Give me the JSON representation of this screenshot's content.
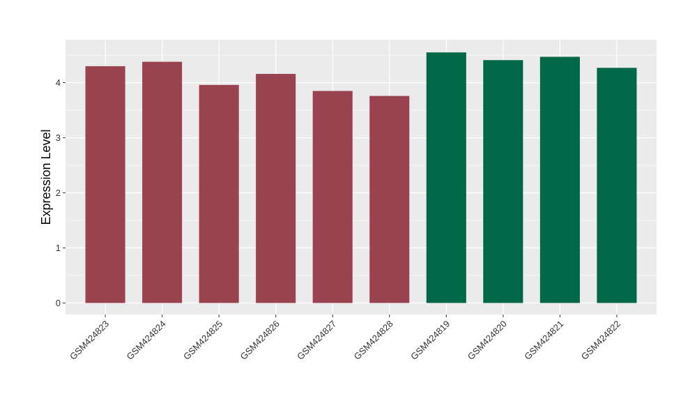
{
  "chart_data": {
    "type": "bar",
    "title": "",
    "xlabel": "",
    "ylabel": "Expression Level",
    "categories": [
      "GSM424823",
      "GSM424824",
      "GSM424825",
      "GSM424826",
      "GSM424827",
      "GSM424828",
      "GSM424819",
      "GSM424820",
      "GSM424821",
      "GSM424822"
    ],
    "values": [
      4.3,
      4.38,
      3.96,
      4.16,
      3.85,
      3.76,
      4.55,
      4.41,
      4.47,
      4.27
    ],
    "bar_colors": [
      "#9a4350",
      "#9a4350",
      "#9a4350",
      "#9a4350",
      "#9a4350",
      "#9a4350",
      "#006747",
      "#006747",
      "#006747",
      "#006747"
    ],
    "ylim": [
      -0.21,
      4.78
    ],
    "yticks": [
      0,
      1,
      2,
      3,
      4
    ],
    "grid": true,
    "legend": "none",
    "panel_background": "#ebebeb",
    "grid_color": "#ffffff"
  }
}
